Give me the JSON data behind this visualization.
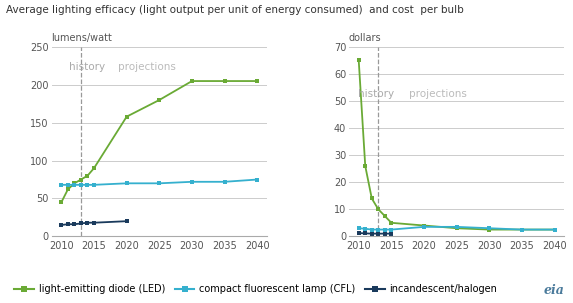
{
  "title": "Average lighting efficacy (light output per unit of energy consumed)  and cost  per bulb",
  "left_ylabel": "lumens/watt",
  "right_ylabel": "dollars",
  "history_label": "history",
  "projections_label": "projections",
  "vline_x": 2013,
  "led_color": "#6aaa35",
  "cfl_color": "#35b0ce",
  "inc_color": "#1a3a5c",
  "left_led_x": [
    2010,
    2011,
    2012,
    2013,
    2014,
    2015,
    2020,
    2025,
    2030,
    2035,
    2040
  ],
  "left_led_y": [
    45,
    62,
    70,
    75,
    80,
    90,
    158,
    180,
    205,
    205,
    205
  ],
  "left_cfl_x": [
    2010,
    2011,
    2012,
    2013,
    2014,
    2015,
    2020,
    2025,
    2030,
    2035,
    2040
  ],
  "left_cfl_y": [
    68,
    68,
    68,
    68,
    68,
    68,
    70,
    70,
    72,
    72,
    75
  ],
  "left_inc_x": [
    2010,
    2011,
    2012,
    2013,
    2014,
    2015,
    2020
  ],
  "left_inc_y": [
    15,
    16,
    16,
    17,
    18,
    18,
    20
  ],
  "right_led_x": [
    2010,
    2011,
    2012,
    2013,
    2014,
    2015,
    2020,
    2025,
    2030,
    2035,
    2040
  ],
  "right_led_y": [
    65,
    26,
    14,
    10,
    7.5,
    5,
    4,
    3,
    2.5,
    2.5,
    2.5
  ],
  "right_cfl_x": [
    2010,
    2011,
    2012,
    2013,
    2014,
    2015,
    2020,
    2025,
    2030,
    2035,
    2040
  ],
  "right_cfl_y": [
    3.0,
    2.8,
    2.5,
    2.5,
    2.5,
    2.5,
    3.5,
    3.5,
    3.0,
    2.5,
    2.5
  ],
  "right_inc_x": [
    2010,
    2011,
    2012,
    2013,
    2014,
    2015
  ],
  "right_inc_y": [
    1.2,
    1.1,
    1.0,
    1.0,
    1.0,
    1.0
  ],
  "left_ylim": [
    0,
    250
  ],
  "left_yticks": [
    0,
    50,
    100,
    150,
    200,
    250
  ],
  "right_ylim": [
    0,
    70
  ],
  "right_yticks": [
    0,
    10,
    20,
    30,
    40,
    50,
    60,
    70
  ],
  "xlim": [
    2008.5,
    2041.5
  ],
  "xticks": [
    2010,
    2015,
    2020,
    2025,
    2030,
    2035,
    2040
  ],
  "legend_led": "light-emitting diode (LED)",
  "legend_cfl": "compact fluorescent lamp (CFL)",
  "legend_inc": "incandescent/halogen",
  "bg_color": "#ffffff",
  "grid_color": "#cccccc",
  "text_color_history": "#aaaaaa",
  "text_color_proj": "#bbbbbb",
  "tick_color": "#555555",
  "axis_color": "#aaaaaa"
}
